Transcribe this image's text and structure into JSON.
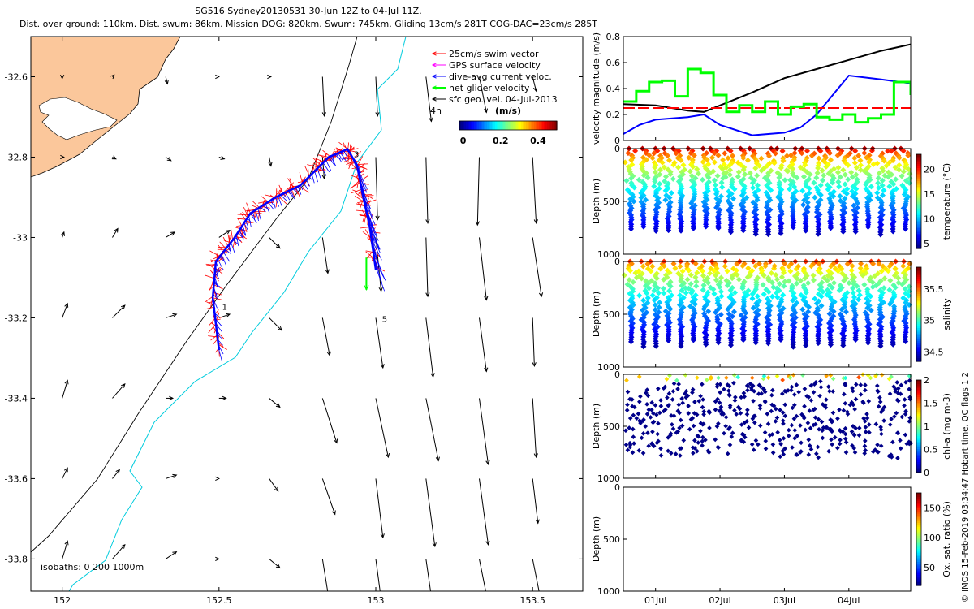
{
  "header": {
    "line1": "SG516 Sydney20130531 30-Jun 12Z to 04-Jul 11Z.",
    "line2": "Dist. over ground: 110km. Dist. swum: 86km. Mission DOG: 820km. Swum: 745km. Gliding 13cm/s 281T COG-DAC=23cm/s 285T"
  },
  "credit": "© IMOS 15-Feb-2019 03:34:47 Hobart time. QC flags 1  2",
  "colors": {
    "land": "#fbc79b",
    "swim_vector": "#ff0000",
    "gps_velocity": "#ff00ff",
    "dac": "#0000ff",
    "net_velocity": "#00ff00",
    "geostrophic": "#000000",
    "isobath_shallow": "#000000",
    "isobath_deep": "#00ccdd",
    "chl_points": "#000080"
  },
  "chart_data": [
    {
      "type": "map",
      "x_ticks": [
        "152",
        "152.5",
        "153",
        "153.5"
      ],
      "x_tick_values": [
        152,
        152.5,
        153,
        153.5
      ],
      "y_ticks": [
        "-32.6",
        "-32.8",
        "-33",
        "-33.2",
        "-33.4",
        "-33.6",
        "-33.8"
      ],
      "y_tick_values": [
        -32.6,
        -32.8,
        -33,
        -33.2,
        -33.4,
        -33.6,
        -33.8
      ],
      "xlim": [
        151.9,
        153.66
      ],
      "ylim": [
        -33.88,
        -32.5
      ],
      "legend": {
        "swim": "25cm/s swim vector",
        "gps": "GPS surface velocity",
        "dac": "dive-avg current veloc.",
        "net": "net glider velocity",
        "geo": "sfc geo. vel. 04-Jul-2013",
        "interval": "4h",
        "colorbar_units": "(m/s)",
        "colorbar_ticks": [
          "0",
          "0.2",
          "0.4"
        ],
        "colorbar_range": [
          -0.02,
          0.5
        ]
      },
      "isobaths_label": "isobaths: 0   200  1000m",
      "day_labels": [
        "1",
        "3",
        "5"
      ],
      "glider_track": [
        [
          152.5,
          -33.28
        ],
        [
          152.48,
          -33.15
        ],
        [
          152.49,
          -33.06
        ],
        [
          152.55,
          -33.0
        ],
        [
          152.6,
          -32.94
        ],
        [
          152.68,
          -32.9
        ],
        [
          152.76,
          -32.87
        ],
        [
          152.85,
          -32.8
        ],
        [
          152.91,
          -32.78
        ],
        [
          152.94,
          -32.82
        ],
        [
          152.96,
          -32.9
        ],
        [
          152.98,
          -32.97
        ],
        [
          153.0,
          -33.08
        ]
      ],
      "geo_vectors": [
        {
          "lon": 152.0,
          "lat": -32.6,
          "u": 0.0,
          "v": -0.01
        },
        {
          "lon": 152.16,
          "lat": -32.6,
          "u": 0.01,
          "v": 0.01
        },
        {
          "lon": 152.33,
          "lat": -32.6,
          "u": 0.01,
          "v": -0.04
        },
        {
          "lon": 152.5,
          "lat": -32.6,
          "u": 0.0,
          "v": 0.0
        },
        {
          "lon": 152.66,
          "lat": -32.6,
          "u": 0.01,
          "v": 0.0
        },
        {
          "lon": 152.83,
          "lat": -32.6,
          "u": 0.01,
          "v": -0.22
        },
        {
          "lon": 153.0,
          "lat": -32.6,
          "u": 0.01,
          "v": -0.22
        },
        {
          "lon": 153.16,
          "lat": -32.6,
          "u": 0.03,
          "v": -0.25
        },
        {
          "lon": 153.33,
          "lat": -32.6,
          "u": 0.04,
          "v": -0.2
        },
        {
          "lon": 153.5,
          "lat": -32.6,
          "u": 0.02,
          "v": -0.08
        },
        {
          "lon": 152.0,
          "lat": -32.8,
          "u": 0.01,
          "v": 0.0
        },
        {
          "lon": 152.16,
          "lat": -32.8,
          "u": 0.02,
          "v": -0.01
        },
        {
          "lon": 152.33,
          "lat": -32.8,
          "u": 0.03,
          "v": -0.02
        },
        {
          "lon": 152.5,
          "lat": -32.8,
          "u": 0.03,
          "v": -0.01
        },
        {
          "lon": 152.66,
          "lat": -32.8,
          "u": 0.01,
          "v": -0.05
        },
        {
          "lon": 152.83,
          "lat": -32.8,
          "u": 0.01,
          "v": -0.12
        },
        {
          "lon": 153.0,
          "lat": -32.8,
          "u": 0.01,
          "v": -0.35
        },
        {
          "lon": 153.16,
          "lat": -32.8,
          "u": 0.01,
          "v": -0.37
        },
        {
          "lon": 153.33,
          "lat": -32.8,
          "u": -0.01,
          "v": -0.38
        },
        {
          "lon": 153.5,
          "lat": -32.8,
          "u": 0.02,
          "v": -0.37
        },
        {
          "lon": 152.0,
          "lat": -33.0,
          "u": 0.01,
          "v": 0.03
        },
        {
          "lon": 152.16,
          "lat": -33.0,
          "u": 0.03,
          "v": 0.05
        },
        {
          "lon": 152.33,
          "lat": -33.0,
          "u": 0.05,
          "v": 0.03
        },
        {
          "lon": 152.5,
          "lat": -33.0,
          "u": 0.06,
          "v": 0.04
        },
        {
          "lon": 152.66,
          "lat": -33.0,
          "u": 0.06,
          "v": -0.06
        },
        {
          "lon": 152.83,
          "lat": -33.0,
          "u": 0.03,
          "v": -0.2
        },
        {
          "lon": 153.0,
          "lat": -33.0,
          "u": 0.03,
          "v": -0.3
        },
        {
          "lon": 153.16,
          "lat": -33.0,
          "u": 0.01,
          "v": -0.33
        },
        {
          "lon": 153.33,
          "lat": -33.0,
          "u": 0.04,
          "v": -0.35
        },
        {
          "lon": 153.5,
          "lat": -33.0,
          "u": 0.05,
          "v": -0.33
        },
        {
          "lon": 152.0,
          "lat": -33.2,
          "u": 0.03,
          "v": 0.08
        },
        {
          "lon": 152.16,
          "lat": -33.2,
          "u": 0.07,
          "v": 0.07
        },
        {
          "lon": 152.33,
          "lat": -33.2,
          "u": 0.06,
          "v": 0.02
        },
        {
          "lon": 152.5,
          "lat": -33.2,
          "u": 0.06,
          "v": 0.02
        },
        {
          "lon": 152.66,
          "lat": -33.2,
          "u": 0.07,
          "v": -0.07
        },
        {
          "lon": 152.83,
          "lat": -33.2,
          "u": 0.04,
          "v": -0.21
        },
        {
          "lon": 153.0,
          "lat": -33.2,
          "u": 0.04,
          "v": -0.28
        },
        {
          "lon": 153.16,
          "lat": -33.2,
          "u": 0.04,
          "v": -0.33
        },
        {
          "lon": 153.33,
          "lat": -33.2,
          "u": 0.04,
          "v": -0.3
        },
        {
          "lon": 153.5,
          "lat": -33.2,
          "u": 0.01,
          "v": -0.27
        },
        {
          "lon": 152.0,
          "lat": -33.4,
          "u": 0.03,
          "v": 0.1
        },
        {
          "lon": 152.16,
          "lat": -33.4,
          "u": 0.07,
          "v": 0.08
        },
        {
          "lon": 152.33,
          "lat": -33.4,
          "u": 0.04,
          "v": 0.0
        },
        {
          "lon": 152.5,
          "lat": -33.4,
          "u": 0.04,
          "v": 0.0
        },
        {
          "lon": 152.66,
          "lat": -33.4,
          "u": 0.06,
          "v": -0.05
        },
        {
          "lon": 152.83,
          "lat": -33.4,
          "u": 0.08,
          "v": -0.25
        },
        {
          "lon": 153.0,
          "lat": -33.4,
          "u": 0.07,
          "v": -0.33
        },
        {
          "lon": 153.16,
          "lat": -33.4,
          "u": 0.07,
          "v": -0.35
        },
        {
          "lon": 153.33,
          "lat": -33.4,
          "u": 0.05,
          "v": -0.37
        },
        {
          "lon": 153.5,
          "lat": -33.4,
          "u": 0.02,
          "v": -0.33
        },
        {
          "lon": 152.0,
          "lat": -33.6,
          "u": 0.03,
          "v": 0.06
        },
        {
          "lon": 152.16,
          "lat": -33.6,
          "u": 0.04,
          "v": 0.05
        },
        {
          "lon": 152.33,
          "lat": -33.6,
          "u": 0.06,
          "v": 0.02
        },
        {
          "lon": 152.5,
          "lat": -33.6,
          "u": 0.0,
          "v": 0.0
        },
        {
          "lon": 152.66,
          "lat": -33.6,
          "u": 0.05,
          "v": -0.07
        },
        {
          "lon": 152.83,
          "lat": -33.6,
          "u": 0.07,
          "v": -0.2
        },
        {
          "lon": 153.0,
          "lat": -33.6,
          "u": 0.04,
          "v": -0.33
        },
        {
          "lon": 153.16,
          "lat": -33.6,
          "u": 0.05,
          "v": -0.38
        },
        {
          "lon": 153.33,
          "lat": -33.6,
          "u": 0.05,
          "v": -0.37
        },
        {
          "lon": 153.5,
          "lat": -33.6,
          "u": 0.03,
          "v": -0.25
        },
        {
          "lon": 152.0,
          "lat": -33.8,
          "u": 0.03,
          "v": 0.1
        },
        {
          "lon": 152.16,
          "lat": -33.8,
          "u": 0.07,
          "v": 0.08
        },
        {
          "lon": 152.33,
          "lat": -33.8,
          "u": 0.06,
          "v": 0.04
        },
        {
          "lon": 152.5,
          "lat": -33.8,
          "u": 0.0,
          "v": 0.0
        },
        {
          "lon": 152.66,
          "lat": -33.8,
          "u": 0.06,
          "v": -0.05
        },
        {
          "lon": 152.83,
          "lat": -33.8,
          "u": 0.04,
          "v": -0.25
        },
        {
          "lon": 153.0,
          "lat": -33.8,
          "u": 0.04,
          "v": -0.3
        },
        {
          "lon": 153.16,
          "lat": -33.8,
          "u": 0.05,
          "v": -0.35
        },
        {
          "lon": 153.33,
          "lat": -33.8,
          "u": 0.06,
          "v": -0.3
        },
        {
          "lon": 153.5,
          "lat": -33.8,
          "u": 0.04,
          "v": -0.2
        }
      ]
    },
    {
      "type": "line",
      "ylabel": "velocity magnitude (m/s)",
      "xlim": [
        0.5,
        4.96
      ],
      "ylim": [
        0,
        0.8
      ],
      "y_ticks": [
        "0",
        "0.2",
        "0.4",
        "0.6",
        "0.8"
      ],
      "y_tick_values": [
        0,
        0.2,
        0.4,
        0.6,
        0.8
      ],
      "series": [
        {
          "color": "#000000",
          "x": [
            0.5,
            1.0,
            1.5,
            1.75,
            2.0,
            2.5,
            3.0,
            3.5,
            4.0,
            4.5,
            4.96
          ],
          "values": [
            0.28,
            0.27,
            0.23,
            0.22,
            0.27,
            0.37,
            0.48,
            0.55,
            0.62,
            0.69,
            0.74
          ]
        },
        {
          "color": "#0000ff",
          "x": [
            0.5,
            0.75,
            1.0,
            1.5,
            1.75,
            2.0,
            2.5,
            2.75,
            3.0,
            3.25,
            3.5,
            3.75,
            4.0,
            4.5,
            4.96
          ],
          "values": [
            0.05,
            0.12,
            0.16,
            0.18,
            0.2,
            0.12,
            0.04,
            0.05,
            0.06,
            0.1,
            0.2,
            0.35,
            0.5,
            0.47,
            0.44
          ]
        },
        {
          "color": "#ff0000",
          "dashed": true,
          "x": [
            0.5,
            4.96
          ],
          "values": [
            0.25,
            0.25
          ]
        },
        {
          "color": "#00ff00",
          "step": true,
          "x": [
            0.5,
            0.7,
            0.9,
            1.1,
            1.3,
            1.5,
            1.7,
            1.9,
            2.1,
            2.3,
            2.5,
            2.7,
            2.9,
            3.1,
            3.3,
            3.5,
            3.7,
            3.9,
            4.1,
            4.3,
            4.5,
            4.7,
            4.96
          ],
          "values": [
            0.3,
            0.38,
            0.45,
            0.46,
            0.34,
            0.55,
            0.52,
            0.35,
            0.22,
            0.27,
            0.22,
            0.3,
            0.2,
            0.26,
            0.28,
            0.18,
            0.16,
            0.2,
            0.14,
            0.17,
            0.2,
            0.45,
            0.35
          ]
        }
      ]
    },
    {
      "type": "scatter",
      "variable": "temperature",
      "ylabel": "Depth (m)",
      "colorbar_label": "temperature (°C)",
      "colorbar_ticks": [
        "5",
        "10",
        "15",
        "20"
      ],
      "colorbar_values": [
        5,
        10,
        15,
        20
      ],
      "colorbar_range": [
        4,
        23
      ],
      "ylim": [
        0,
        1000
      ],
      "y_ticks": [
        "0",
        "500",
        "1000"
      ],
      "y_tick_values": [
        0,
        500,
        1000
      ],
      "surface_value": 22,
      "bottom_value": 5
    },
    {
      "type": "scatter",
      "variable": "salinity",
      "ylabel": "Depth (m)",
      "colorbar_label": "salinity",
      "colorbar_ticks": [
        "34.5",
        "35",
        "35.5"
      ],
      "colorbar_values": [
        34.5,
        35,
        35.5
      ],
      "colorbar_range": [
        34.35,
        35.85
      ],
      "ylim": [
        0,
        1000
      ],
      "y_ticks": [
        "0",
        "500",
        "1000"
      ],
      "y_tick_values": [
        0,
        500,
        1000
      ],
      "surface_value": 35.6,
      "bottom_value": 34.4
    },
    {
      "type": "scatter",
      "variable": "chl-a",
      "ylabel": "Depth (m)",
      "colorbar_label": "chl-a (mg m-3)",
      "colorbar_ticks": [
        "0",
        "0.5",
        "1",
        "1.5",
        "2"
      ],
      "colorbar_values": [
        0,
        0.5,
        1,
        1.5,
        2
      ],
      "colorbar_range": [
        0,
        2
      ],
      "ylim": [
        0,
        1000
      ],
      "y_ticks": [
        "0",
        "500",
        "1000"
      ],
      "y_tick_values": [
        0,
        500,
        1000
      ]
    },
    {
      "type": "scatter",
      "variable": "oxygen saturation",
      "ylabel": "Depth (m)",
      "colorbar_label": "Ox. sat. ratio (%)",
      "colorbar_ticks": [
        "50",
        "100",
        "150"
      ],
      "colorbar_values": [
        50,
        100,
        150
      ],
      "colorbar_range": [
        20,
        175
      ],
      "ylim": [
        0,
        1000
      ],
      "y_ticks": [
        "0",
        "500",
        "1000"
      ],
      "y_tick_values": [
        0,
        500,
        1000
      ],
      "empty": true
    }
  ],
  "time_axis": {
    "xlim": [
      0.5,
      4.96
    ],
    "ticks": [
      "01Jul",
      "02Jul",
      "03Jul",
      "04Jul"
    ],
    "tick_values": [
      1,
      2,
      3,
      4
    ],
    "dive_count": 23,
    "dive_depth_max": 820
  }
}
